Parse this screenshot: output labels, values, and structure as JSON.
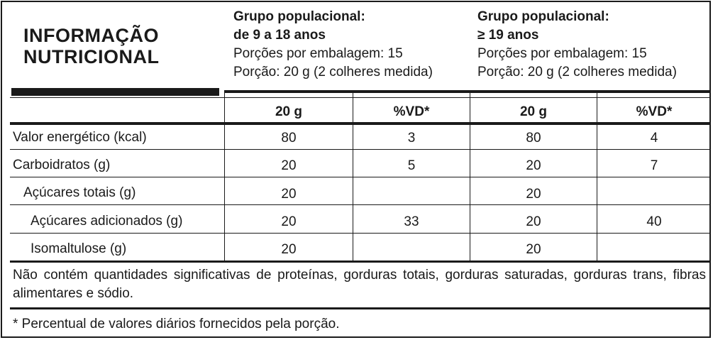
{
  "title": {
    "line1": "INFORMAÇÃO",
    "line2": "NUTRICIONAL"
  },
  "groups": [
    {
      "title1": "Grupo populacional:",
      "title2": "de 9 a 18 anos",
      "servings": "Porções por embalagem: 15",
      "portion": "Porção: 20 g (2 colheres medida)"
    },
    {
      "title1": "Grupo populacional:",
      "title2": "≥ 19 anos",
      "servings": "Porções por embalagem: 15",
      "portion": "Porção: 20 g (2 colheres medida)"
    }
  ],
  "columns": [
    "20 g",
    "%VD*",
    "20 g",
    "%VD*"
  ],
  "rows": [
    {
      "label": "Valor energético (kcal)",
      "values": [
        "80",
        "3",
        "80",
        "4"
      ]
    },
    {
      "label": "Carboidratos (g)",
      "values": [
        "20",
        "5",
        "20",
        "7"
      ]
    },
    {
      "label": "Açúcares totais (g)",
      "values": [
        "20",
        "",
        "20",
        ""
      ]
    },
    {
      "label": "Açúcares adicionados (g)",
      "values": [
        "20",
        "33",
        "20",
        "40"
      ]
    },
    {
      "label": "Isomaltulose (g)",
      "values": [
        "20",
        "",
        "20",
        ""
      ]
    }
  ],
  "footnote_main": "Não contém quantidades significativas de proteínas, gorduras totais, gorduras saturadas, gorduras trans, fibras alimentares e sódio.",
  "footnote_vd": "* Percentual de valores diários fornecidos pela porção."
}
